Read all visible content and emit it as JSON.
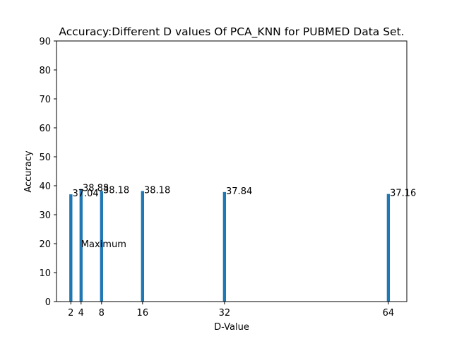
{
  "chart_data": {
    "type": "bar",
    "title": "Accuracy:Different D values Of PCA_KNN for PUBMED Data Set.",
    "xlabel": "D-Value",
    "ylabel": "Accuracy",
    "x": [
      2,
      4,
      8,
      16,
      32,
      64
    ],
    "values": [
      37.04,
      38.88,
      38.18,
      38.18,
      37.84,
      37.16
    ],
    "data_labels": [
      "37.04",
      "38.88",
      "38.18",
      "38.18",
      "37.84",
      "37.16"
    ],
    "xticks": [
      "2",
      "4",
      "8",
      "16",
      "32",
      "64"
    ],
    "yticks": [
      "0",
      "10",
      "20",
      "30",
      "40",
      "50",
      "60",
      "70",
      "80",
      "90"
    ],
    "xlim": [
      -0.8,
      67.6
    ],
    "ylim": [
      0,
      90
    ],
    "bar_width": 0.6,
    "grid": false,
    "annotations": [
      {
        "text": "Maximum",
        "x": 4,
        "y": 20
      }
    ],
    "bar_color": "#1f77b4"
  }
}
